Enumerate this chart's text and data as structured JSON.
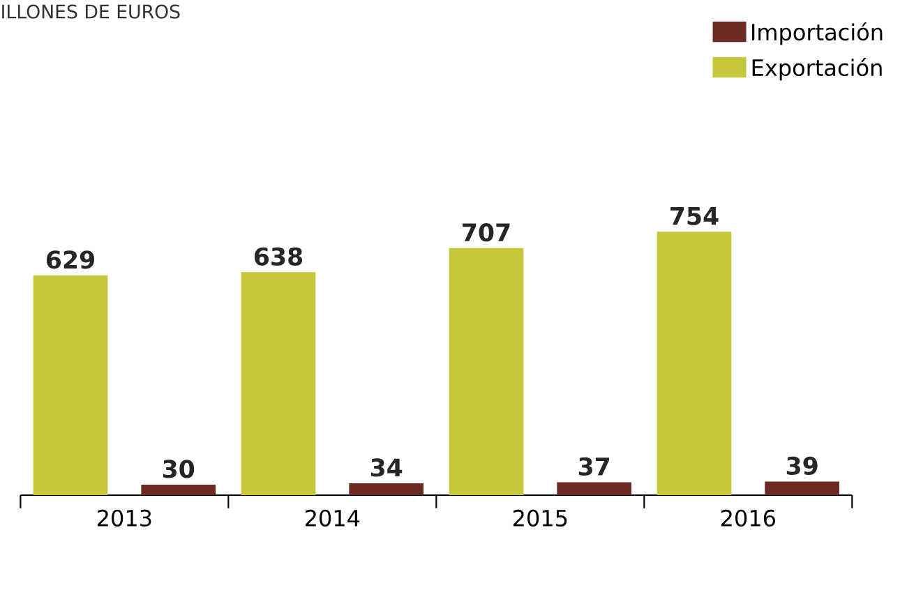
{
  "chart_data": {
    "type": "bar",
    "title": "ILLONES DE EUROS",
    "categories": [
      "2013",
      "2014",
      "2015",
      "2016"
    ],
    "series": [
      {
        "name": "Exportación",
        "color": "#c4c83a",
        "values": [
          629,
          638,
          707,
          754
        ]
      },
      {
        "name": "Importación",
        "color": "#6b2a24",
        "values": [
          30,
          34,
          37,
          39
        ]
      }
    ],
    "data_labels": true,
    "legend": "top right",
    "tick_labels": "x"
  }
}
